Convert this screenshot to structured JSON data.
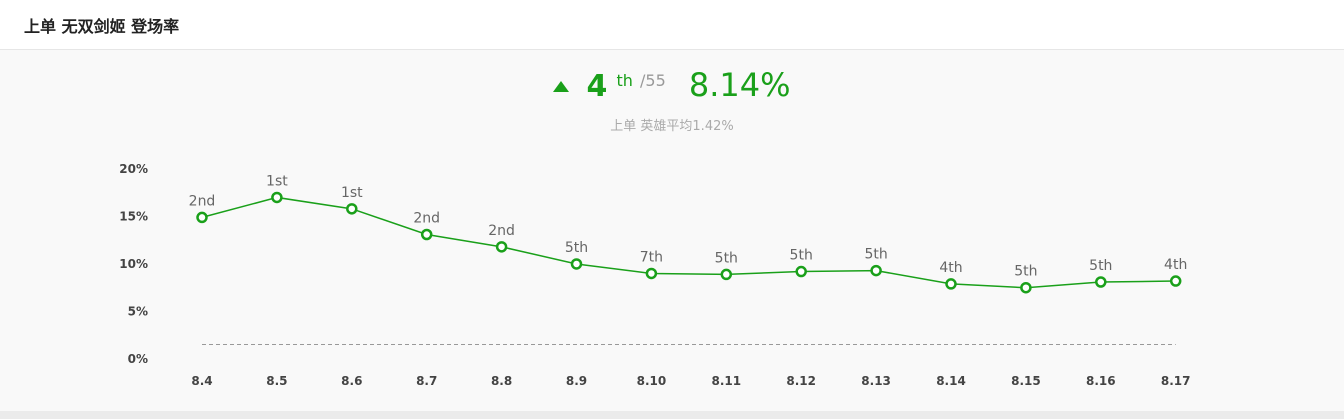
{
  "header": {
    "title": "上单 无双剑姬 登场率"
  },
  "summary": {
    "trend_icon": "arrow-up-icon",
    "rank": "4",
    "rank_suffix": "th",
    "rank_total": "/55",
    "rate": "8.14%",
    "subtitle": "上单 英雄平均1.42%"
  },
  "colors": {
    "accent": "#1aa01a",
    "average_line": "#999999"
  },
  "chart_data": {
    "type": "line",
    "title": "",
    "xlabel": "",
    "ylabel": "",
    "categories": [
      "8.4",
      "8.5",
      "8.6",
      "8.7",
      "8.8",
      "8.9",
      "8.10",
      "8.11",
      "8.12",
      "8.13",
      "8.14",
      "8.15",
      "8.16",
      "8.17"
    ],
    "series": [
      {
        "values": [
          14.8,
          16.9,
          15.7,
          13.0,
          11.7,
          9.9,
          8.9,
          8.8,
          9.1,
          9.2,
          7.8,
          7.4,
          8.0,
          8.1
        ],
        "labels": [
          "2nd",
          "1st",
          "1st",
          "2nd",
          "2nd",
          "5th",
          "7th",
          "5th",
          "5th",
          "5th",
          "4th",
          "5th",
          "5th",
          "4th"
        ]
      }
    ],
    "average": 1.42,
    "yticks": [
      "0%",
      "5%",
      "10%",
      "15%",
      "20%"
    ],
    "ylim": [
      0,
      20
    ],
    "grid": false
  }
}
